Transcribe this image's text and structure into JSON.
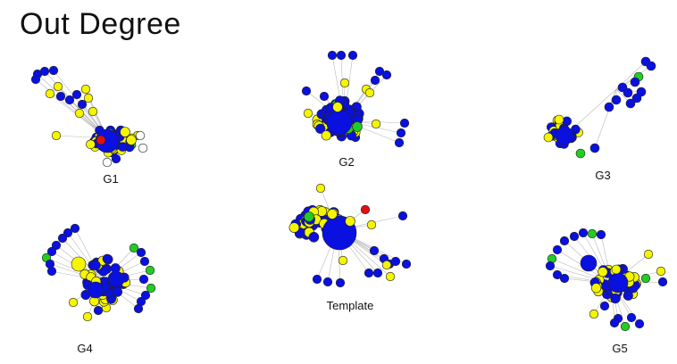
{
  "title": "Out Degree",
  "colors": {
    "blue": "#0a10e0",
    "yellow": "#f5f500",
    "green": "#22cc22",
    "red": "#e01010",
    "white": "#ffffff",
    "edge": "#b8b8b8",
    "outline": "#222222"
  },
  "graphs": [
    {
      "id": "g1",
      "label": "G1"
    },
    {
      "id": "g2",
      "label": "G2"
    },
    {
      "id": "g3",
      "label": "G3"
    },
    {
      "id": "g4",
      "label": "G4"
    },
    {
      "id": "template",
      "label": "Template"
    },
    {
      "id": "g5",
      "label": "G5"
    }
  ]
}
